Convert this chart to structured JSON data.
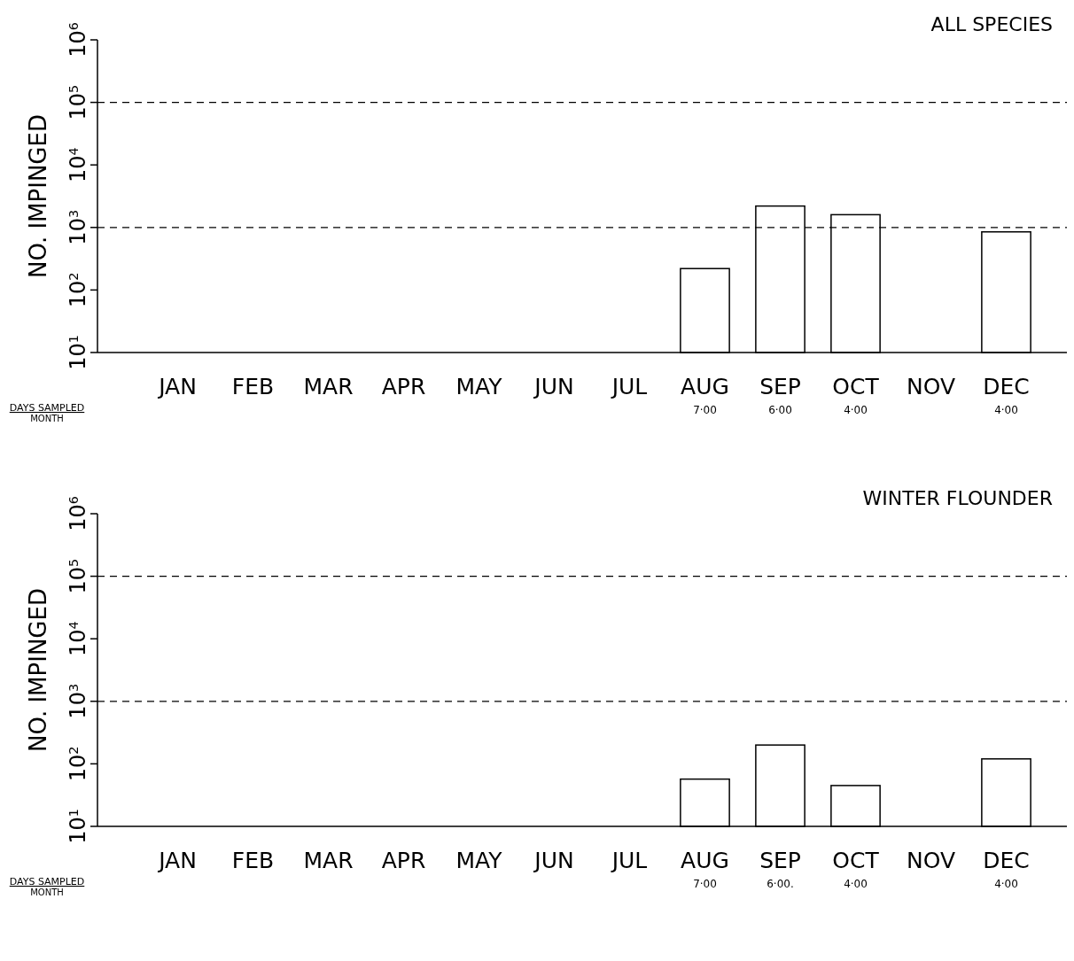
{
  "chart_data": [
    {
      "type": "bar",
      "title": "ALL SPECIES",
      "ylabel": "NO. IMPINGED",
      "categories": [
        "JAN",
        "FEB",
        "MAR",
        "APR",
        "MAY",
        "JUN",
        "JUL",
        "AUG",
        "SEP",
        "OCT",
        "NOV",
        "DEC"
      ],
      "values": [
        null,
        null,
        null,
        null,
        null,
        null,
        null,
        220,
        2200,
        1600,
        null,
        850
      ],
      "color": "#ffffff",
      "log": true,
      "ylim": [
        10,
        1000000
      ],
      "yticks": [
        {
          "value": 10,
          "label": "10$^{1}$"
        },
        {
          "value": 100,
          "label": "10$^{2}$"
        },
        {
          "value": 1000,
          "label": "10$^{3}$"
        },
        {
          "value": 10000,
          "label": "10$^{4}$"
        },
        {
          "value": 100000,
          "label": "10$^{5}$"
        },
        {
          "value": 1000000,
          "label": "10$^{6}$"
        }
      ],
      "ref_lines": [
        {
          "axis": "y",
          "value": 1000,
          "line_style": "dashed"
        },
        {
          "axis": "y",
          "value": 100000,
          "line_style": "dashed"
        }
      ],
      "annotations": [
        "DAYS SAMPLED",
        "MONTH",
        "7·00",
        "6·00",
        "4·00",
        "4·00"
      ],
      "grid": false
    },
    {
      "type": "bar",
      "title": "WINTER FLOUNDER",
      "ylabel": "NO. IMPINGED",
      "categories": [
        "JAN",
        "FEB",
        "MAR",
        "APR",
        "MAY",
        "JUN",
        "JUL",
        "AUG",
        "SEP",
        "OCT",
        "NOV",
        "DEC"
      ],
      "values": [
        null,
        null,
        null,
        null,
        null,
        null,
        null,
        57,
        200,
        45,
        null,
        120
      ],
      "color": "#ffffff",
      "log": true,
      "ylim": [
        10,
        1000000
      ],
      "yticks": [
        {
          "value": 10,
          "label": "10$^{1}$"
        },
        {
          "value": 100,
          "label": "10$^{2}$"
        },
        {
          "value": 1000,
          "label": "10$^{3}$"
        },
        {
          "value": 10000,
          "label": "10$^{4}$"
        },
        {
          "value": 100000,
          "label": "10$^{5}$"
        },
        {
          "value": 1000000,
          "label": "10$^{6}$"
        }
      ],
      "ref_lines": [
        {
          "axis": "y",
          "value": 1000,
          "line_style": "dashed"
        },
        {
          "axis": "y",
          "value": 100000,
          "line_style": "dashed"
        }
      ],
      "annotations": [
        "DAYS SAMPLED",
        "MONTH",
        "7·00",
        "6·00.",
        "4·00",
        "4·00"
      ],
      "grid": false
    }
  ]
}
